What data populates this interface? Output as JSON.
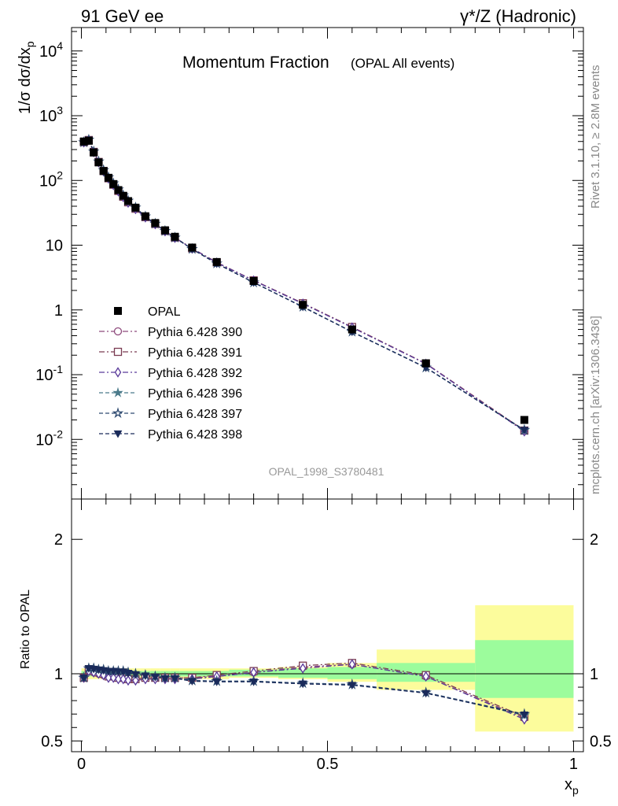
{
  "header": {
    "left": "91 GeV ee",
    "right": "γ*/Z (Hadronic)"
  },
  "side_text": {
    "rivet": "Rivet 3.1.10, ≥ 2.8M events",
    "mcplots": "mcplots.cern.ch [arXiv:1306.3436]"
  },
  "watermark": "OPAL_1998_S3780481",
  "chart_data": [
    {
      "panel": "main",
      "type": "scatter",
      "title": "Momentum Fraction",
      "subtitle": "(OPAL All events)",
      "ylabel": "1/σ dσ/dx_p",
      "yscale": "log",
      "ylim": [
        0.0012,
        23000
      ],
      "xlim": [
        -0.02,
        1.02
      ],
      "ytick_labels": [
        "10^-2",
        "10^-1",
        "1",
        "10",
        "10^2",
        "10^3",
        "10^4"
      ],
      "legend_position": "lower-left",
      "reference": {
        "name": "OPAL",
        "x": [
          0.005,
          0.015,
          0.025,
          0.035,
          0.045,
          0.055,
          0.065,
          0.075,
          0.085,
          0.095,
          0.11,
          0.13,
          0.15,
          0.17,
          0.19,
          0.225,
          0.275,
          0.35,
          0.45,
          0.55,
          0.7,
          0.9
        ],
        "y": [
          400,
          410,
          270,
          190,
          140,
          110,
          88,
          71,
          58,
          48,
          38,
          28,
          22,
          17,
          13.5,
          9.2,
          5.5,
          2.8,
          1.2,
          0.5,
          0.15,
          0.02
        ]
      },
      "series": [
        {
          "name": "Pythia 6.428 390",
          "marker": "circle-open",
          "line": "dash-dot",
          "color": "#8e4a7c",
          "y": [
            390,
            420,
            275,
            192,
            140,
            108,
            86,
            69,
            56,
            46,
            36.5,
            27,
            21.2,
            16.5,
            13.1,
            8.9,
            5.4,
            2.85,
            1.26,
            0.54,
            0.148,
            0.0135
          ]
        },
        {
          "name": "Pythia 6.428 391",
          "marker": "square-open",
          "line": "dash-dot",
          "color": "#7a3b52",
          "y": [
            391,
            421,
            276,
            193,
            140,
            108,
            86,
            69,
            56,
            46,
            36.6,
            27.1,
            21.3,
            16.6,
            13.1,
            8.95,
            5.43,
            2.86,
            1.27,
            0.545,
            0.149,
            0.0137
          ]
        },
        {
          "name": "Pythia 6.428 392",
          "marker": "diamond-open",
          "line": "dash-dot",
          "color": "#5a3a9a",
          "y": [
            389,
            419,
            274,
            191,
            139,
            107,
            85,
            68,
            55.5,
            45.5,
            36.2,
            26.9,
            21.1,
            16.4,
            13.0,
            8.88,
            5.38,
            2.84,
            1.25,
            0.535,
            0.147,
            0.0133
          ]
        },
        {
          "name": "Pythia 6.428 396",
          "marker": "star-filled",
          "line": "dashed",
          "color": "#4a7a8a",
          "y": [
            388,
            425,
            280,
            196,
            144,
            112,
            90,
            72.5,
            59,
            48.5,
            38,
            27.8,
            21.5,
            16.6,
            13.1,
            8.7,
            5.2,
            2.65,
            1.12,
            0.46,
            0.129,
            0.0138
          ]
        },
        {
          "name": "Pythia 6.428 397",
          "marker": "star-open",
          "line": "dashed",
          "color": "#2e4a70",
          "y": [
            388,
            426,
            280,
            196,
            144,
            112,
            90,
            72.6,
            59,
            48.6,
            38.1,
            27.8,
            21.5,
            16.6,
            13.1,
            8.72,
            5.21,
            2.66,
            1.12,
            0.46,
            0.129,
            0.014
          ]
        },
        {
          "name": "Pythia 6.428 398",
          "marker": "triangle-down-filled",
          "line": "dashed",
          "color": "#1a2a5a",
          "y": [
            389,
            425,
            279,
            195,
            143,
            111,
            89.5,
            72,
            58.8,
            48.4,
            37.9,
            27.7,
            21.4,
            16.5,
            13.05,
            8.69,
            5.19,
            2.65,
            1.11,
            0.458,
            0.128,
            0.0139
          ]
        }
      ]
    },
    {
      "panel": "ratio",
      "type": "line",
      "ylabel": "Ratio to OPAL",
      "xlabel": "x_p",
      "ylim": [
        0.42,
        2.3
      ],
      "xlim": [
        -0.02,
        1.02
      ],
      "xtick_labels": [
        "0",
        "0.5",
        "1"
      ],
      "ytick_labels": [
        "0.5",
        "1",
        "2"
      ],
      "bands": {
        "x_edges": [
          0.0,
          0.01,
          0.02,
          0.03,
          0.04,
          0.05,
          0.06,
          0.07,
          0.08,
          0.09,
          0.1,
          0.12,
          0.14,
          0.16,
          0.18,
          0.2,
          0.25,
          0.3,
          0.4,
          0.5,
          0.6,
          0.8,
          1.0
        ],
        "inner": [
          [
            0.98,
            1.02
          ],
          [
            0.98,
            1.02
          ],
          [
            0.98,
            1.02
          ],
          [
            0.98,
            1.02
          ],
          [
            0.98,
            1.02
          ],
          [
            0.98,
            1.02
          ],
          [
            0.98,
            1.02
          ],
          [
            0.98,
            1.02
          ],
          [
            0.98,
            1.02
          ],
          [
            0.98,
            1.02
          ],
          [
            0.98,
            1.02
          ],
          [
            0.98,
            1.02
          ],
          [
            0.98,
            1.02
          ],
          [
            0.98,
            1.02
          ],
          [
            0.98,
            1.02
          ],
          [
            0.98,
            1.02
          ],
          [
            0.98,
            1.02
          ],
          [
            0.98,
            1.03
          ],
          [
            0.97,
            1.04
          ],
          [
            0.96,
            1.05
          ],
          [
            0.94,
            1.08
          ],
          [
            0.82,
            1.25
          ]
        ],
        "outer": [
          [
            0.96,
            1.04
          ],
          [
            0.96,
            1.04
          ],
          [
            0.96,
            1.04
          ],
          [
            0.96,
            1.04
          ],
          [
            0.96,
            1.04
          ],
          [
            0.96,
            1.04
          ],
          [
            0.96,
            1.04
          ],
          [
            0.96,
            1.04
          ],
          [
            0.96,
            1.04
          ],
          [
            0.96,
            1.04
          ],
          [
            0.96,
            1.04
          ],
          [
            0.96,
            1.04
          ],
          [
            0.96,
            1.04
          ],
          [
            0.96,
            1.04
          ],
          [
            0.96,
            1.04
          ],
          [
            0.96,
            1.04
          ],
          [
            0.96,
            1.04
          ],
          [
            0.97,
            1.04
          ],
          [
            0.96,
            1.05
          ],
          [
            0.94,
            1.08
          ],
          [
            0.88,
            1.18
          ],
          [
            0.57,
            1.51
          ]
        ],
        "inner_color": "#9cfc9c",
        "outer_color": "#fcfc9c"
      },
      "x": [
        0.005,
        0.015,
        0.025,
        0.035,
        0.045,
        0.055,
        0.065,
        0.075,
        0.085,
        0.095,
        0.11,
        0.13,
        0.15,
        0.17,
        0.19,
        0.225,
        0.275,
        0.35,
        0.45,
        0.55,
        0.7,
        0.9
      ],
      "series": [
        {
          "name": "Pythia 6.428 390",
          "y": [
            0.97,
            1.02,
            1.01,
            1.0,
            0.99,
            0.98,
            0.98,
            0.97,
            0.97,
            0.96,
            0.96,
            0.97,
            0.97,
            0.97,
            0.97,
            0.97,
            0.98,
            1.01,
            1.05,
            1.07,
            0.98,
            0.67
          ]
        },
        {
          "name": "Pythia 6.428 391",
          "y": [
            0.97,
            1.03,
            1.02,
            1.01,
            1.0,
            0.98,
            0.98,
            0.97,
            0.97,
            0.96,
            0.96,
            0.97,
            0.97,
            0.97,
            0.97,
            0.97,
            0.99,
            1.02,
            1.06,
            1.08,
            0.99,
            0.68
          ]
        },
        {
          "name": "Pythia 6.428 392",
          "y": [
            0.97,
            1.02,
            1.01,
            1.0,
            0.99,
            0.97,
            0.97,
            0.96,
            0.96,
            0.95,
            0.95,
            0.96,
            0.96,
            0.96,
            0.96,
            0.96,
            0.98,
            1.01,
            1.04,
            1.07,
            0.98,
            0.66
          ]
        },
        {
          "name": "Pythia 6.428 396",
          "y": [
            0.97,
            1.04,
            1.04,
            1.03,
            1.03,
            1.02,
            1.02,
            1.02,
            1.02,
            1.01,
            1.0,
            0.99,
            0.98,
            0.97,
            0.97,
            0.95,
            0.945,
            0.945,
            0.93,
            0.92,
            0.86,
            0.69
          ]
        },
        {
          "name": "Pythia 6.428 397",
          "y": [
            0.97,
            1.04,
            1.04,
            1.03,
            1.03,
            1.02,
            1.02,
            1.02,
            1.02,
            1.01,
            1.0,
            0.99,
            0.98,
            0.97,
            0.97,
            0.95,
            0.945,
            0.945,
            0.93,
            0.92,
            0.86,
            0.7
          ]
        },
        {
          "name": "Pythia 6.428 398",
          "y": [
            0.97,
            1.04,
            1.035,
            1.03,
            1.025,
            1.02,
            1.02,
            1.015,
            1.015,
            1.005,
            0.995,
            0.985,
            0.975,
            0.965,
            0.965,
            0.945,
            0.94,
            0.94,
            0.925,
            0.915,
            0.855,
            0.695
          ]
        }
      ]
    }
  ]
}
